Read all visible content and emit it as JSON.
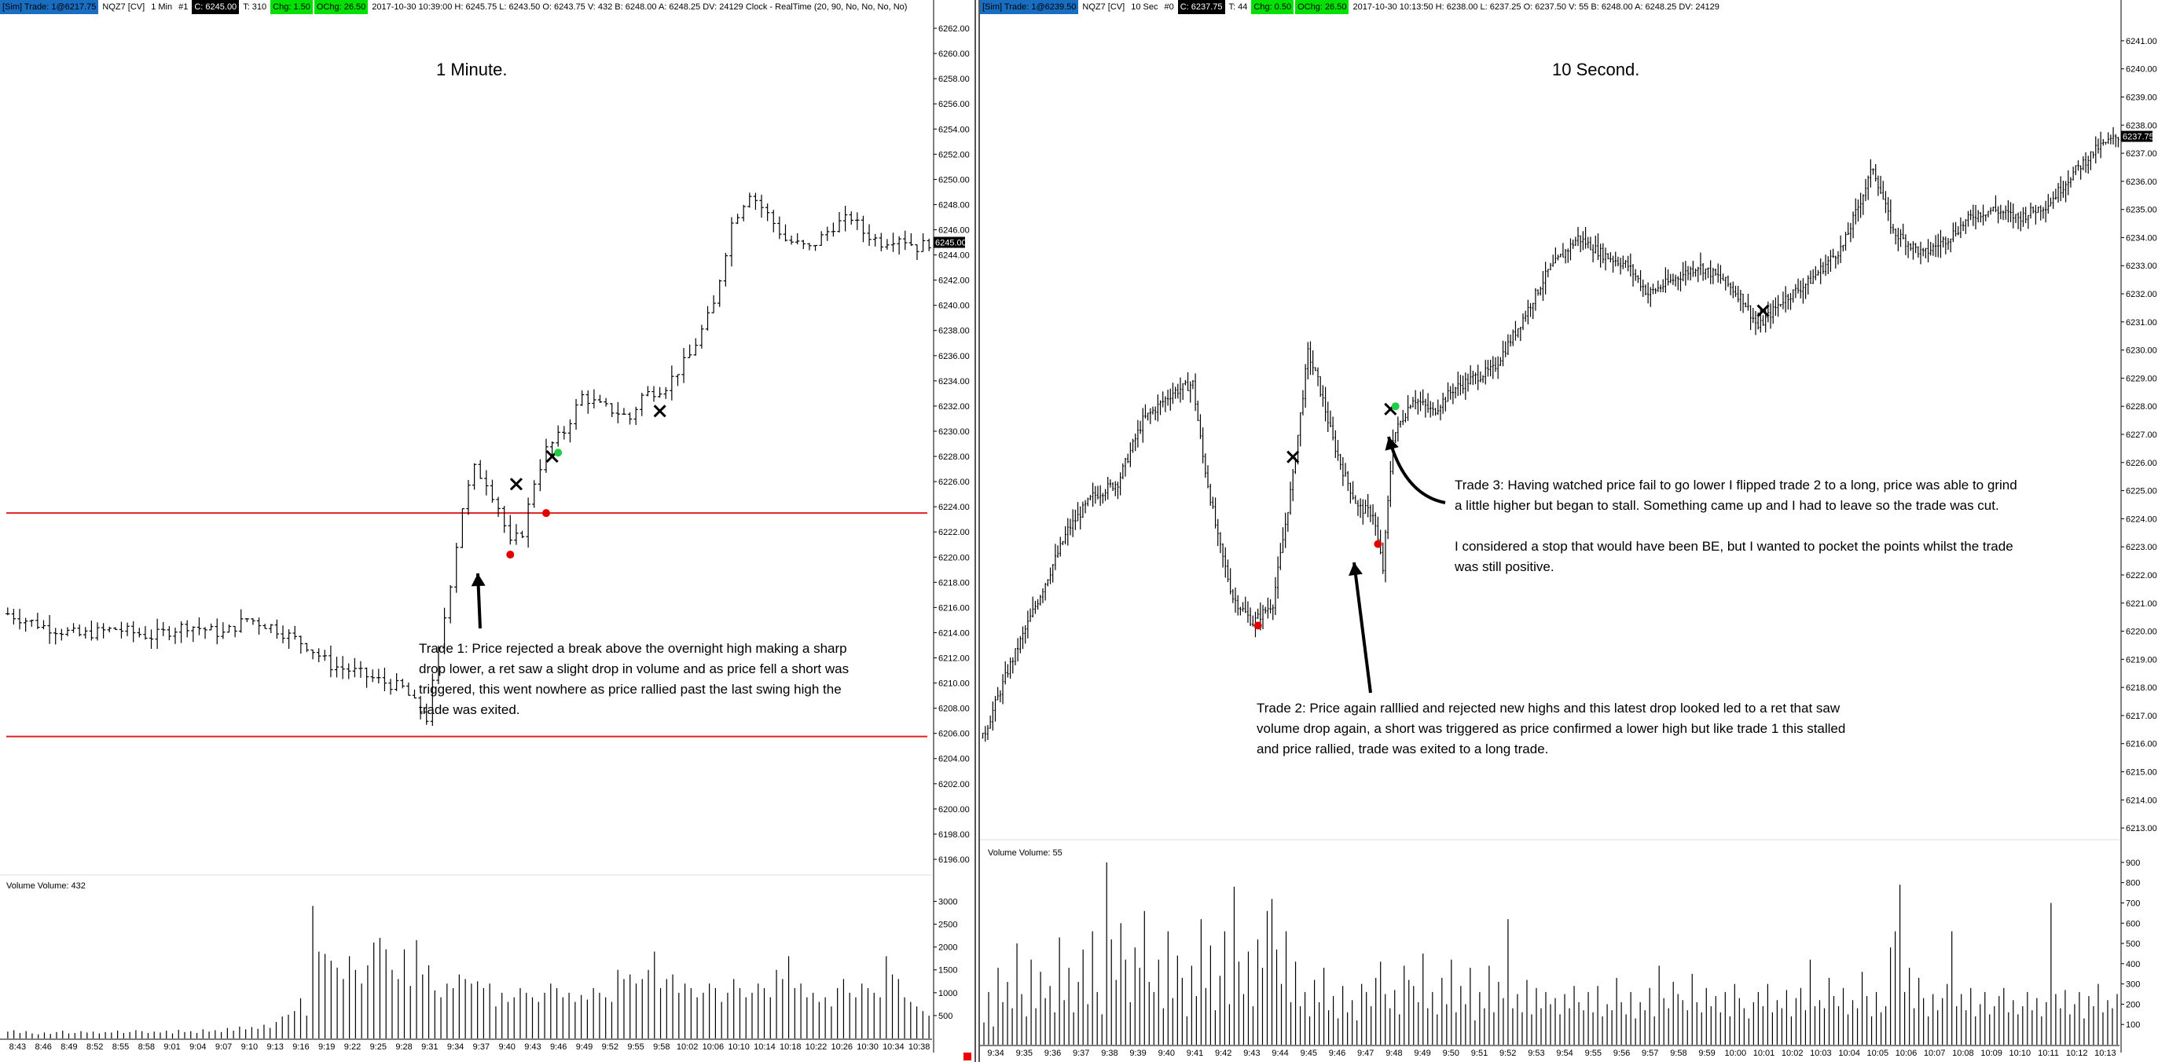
{
  "left": {
    "header": {
      "badge1": "[Sim] Trade: 1@6217.75",
      "instrument": "NQZ7 [CV]",
      "period": "1 Min",
      "num": "#1",
      "close_badge": "C: 6245.00",
      "trades": "T: 310",
      "chg_badge": "Chg: 1.50",
      "ochg_badge": "OChg: 26.50",
      "rest": "2017-10-30 10:39:00  H: 6245.75  L: 6243.50  O: 6243.75  V: 432  B: 6248.00  A: 6248.25  DV: 24129  Clock - RealTime   (20, 90, No, No, No, No)"
    },
    "title": "1 Minute.",
    "note": "Trade 1:  Price rejected a break above the overnight high making a sharp\ndrop lower, a ret saw a slight drop in volume and as price fell a short was\ntriggered, this went nowhere as price rallied past the last swing high the\ntrade was exited.",
    "volume_label": "Volume  Volume: 432",
    "last_price_tag": "6245.00",
    "price_ticks": [
      "6262.00",
      "6260.00",
      "6258.00",
      "6256.00",
      "6254.00",
      "6252.00",
      "6250.00",
      "6248.00",
      "6246.00",
      "6244.00",
      "6242.00",
      "6240.00",
      "6238.00",
      "6236.00",
      "6234.00",
      "6232.00",
      "6230.00",
      "6228.00",
      "6226.00",
      "6224.00",
      "6222.00",
      "6220.00",
      "6218.00",
      "6216.00",
      "6214.00",
      "6212.00",
      "6210.00",
      "6208.00",
      "6206.00",
      "6204.00",
      "6202.00",
      "6200.00",
      "6198.00",
      "6196.00"
    ],
    "volume_ticks": [
      "3000",
      "2500",
      "2000",
      "1500",
      "1000",
      "500"
    ],
    "time_ticks": [
      "8:43",
      "8:46",
      "8:49",
      "8:52",
      "8:55",
      "8:58",
      "9:01",
      "9:04",
      "9:07",
      "9:10",
      "9:13",
      "9:16",
      "9:19",
      "9:22",
      "9:25",
      "9:28",
      "9:31",
      "9:34",
      "9:37",
      "9:40",
      "9:43",
      "9:46",
      "9:49",
      "9:52",
      "9:55",
      "9:58",
      "10:02",
      "10:06",
      "10:10",
      "10:14",
      "10:18",
      "10:22",
      "10:26",
      "10:30",
      "10:34",
      "10:38"
    ]
  },
  "right": {
    "header": {
      "badge1": "[Sim] Trade: 1@6239.50",
      "instrument": "NQZ7 [CV]",
      "period": "10 Sec",
      "num": "#0",
      "close_badge": "C: 6237.75",
      "trades": "T: 44",
      "chg_badge": "Chg: 0.50",
      "ochg_badge": "OChg: 26.50",
      "rest": "2017-10-30 10:13:50  H: 6238.00  L: 6237.25  O: 6237.50  V: 55  B: 6248.00  A: 6248.25  DV: 24129"
    },
    "title": "10 Second.",
    "note2": "Trade 2:  Price again ralllied and rejected new highs and this latest drop looked led to a ret that saw\nvolume drop again, a short was triggered as price confirmed a lower high but like trade 1 this stalled\nand price rallied, trade was exited to a long trade.",
    "note3": "Trade 3:  Having watched price fail to go lower I flipped trade 2 to a long, price was able to grind\na little higher but began to stall.  Something came up and I had to leave so the trade was cut.\n\nI considered a stop that would have been BE, but I wanted to pocket the points whilst the trade\nwas still positive.",
    "volume_label": "Volume  Volume: 55",
    "last_price_tag": "6237.75",
    "price_ticks": [
      "6241.00",
      "6240.00",
      "6239.00",
      "6238.00",
      "6237.00",
      "6236.00",
      "6235.00",
      "6234.00",
      "6233.00",
      "6232.00",
      "6231.00",
      "6230.00",
      "6229.00",
      "6228.00",
      "6227.00",
      "6226.00",
      "6225.00",
      "6224.00",
      "6223.00",
      "6222.00",
      "6221.00",
      "6220.00",
      "6219.00",
      "6218.00",
      "6217.00",
      "6216.00",
      "6215.00",
      "6214.00",
      "6213.00"
    ],
    "volume_ticks": [
      "900",
      "800",
      "700",
      "600",
      "500",
      "400",
      "300",
      "200",
      "100"
    ],
    "time_ticks": [
      "9:34",
      "9:35",
      "9:36",
      "9:37",
      "9:38",
      "9:39",
      "9:40",
      "9:41",
      "9:42",
      "9:43",
      "9:44",
      "9:45",
      "9:46",
      "9:47",
      "9:48",
      "9:49",
      "9:50",
      "9:51",
      "9:52",
      "9:53",
      "9:54",
      "9:55",
      "9:56",
      "9:57",
      "9:58",
      "9:59",
      "10:00",
      "10:01",
      "10:02",
      "10:03",
      "10:04",
      "10:05",
      "10:06",
      "10:07",
      "10:08",
      "10:09",
      "10:10",
      "10:11",
      "10:12",
      "10:13"
    ]
  },
  "colors": {
    "bar": "#000000",
    "hline": "#e02020",
    "entry_dot": "#e00000",
    "exit_dot": "#22cc44",
    "x_mark": "#000000",
    "badge_blue": "#1a6ec2",
    "badge_green": "#00e000"
  },
  "chart_data": [
    {
      "type": "ohlc",
      "panel": "left",
      "interval": "1 Min",
      "ylim": [
        6195,
        6263
      ],
      "volume_ylim": [
        0,
        3300
      ],
      "horizontal_lines": [
        6223.5,
        6205.75
      ],
      "price_path": [
        [
          0,
          6215.5
        ],
        [
          6,
          6214.5
        ],
        [
          12,
          6213.8
        ],
        [
          18,
          6214.3
        ],
        [
          24,
          6213.7
        ],
        [
          30,
          6214.6
        ],
        [
          36,
          6213.9
        ],
        [
          40,
          6215.1
        ],
        [
          44,
          6214.5
        ],
        [
          50,
          6213
        ],
        [
          54,
          6211.4
        ],
        [
          58,
          6210.9
        ],
        [
          62,
          6210.2
        ],
        [
          66,
          6209.6
        ],
        [
          68,
          6208.4
        ],
        [
          70,
          6207.2
        ],
        [
          72,
          6212.5
        ],
        [
          74,
          6218
        ],
        [
          76,
          6224
        ],
        [
          78,
          6227
        ],
        [
          80,
          6226
        ],
        [
          82,
          6224
        ],
        [
          84,
          6221
        ],
        [
          86,
          6222
        ],
        [
          88,
          6226
        ],
        [
          90,
          6228.5
        ],
        [
          93,
          6230
        ],
        [
          96,
          6232.8
        ],
        [
          99,
          6232
        ],
        [
          102,
          6231.5
        ],
        [
          104,
          6231
        ],
        [
          106,
          6232.8
        ],
        [
          110,
          6233.6
        ],
        [
          114,
          6236
        ],
        [
          118,
          6240
        ],
        [
          121,
          6246.5
        ],
        [
          124,
          6249
        ],
        [
          127,
          6247.2
        ],
        [
          130,
          6245.2
        ],
        [
          134,
          6244.5
        ],
        [
          138,
          6246.3
        ],
        [
          141,
          6247
        ],
        [
          143,
          6245.8
        ],
        [
          146,
          6245
        ],
        [
          149,
          6245.5
        ],
        [
          152,
          6244.6
        ],
        [
          154,
          6245
        ]
      ],
      "volume_series": [
        150,
        180,
        120,
        160,
        110,
        90,
        130,
        100,
        140,
        170,
        110,
        120,
        160,
        130,
        150,
        110,
        140,
        130,
        170,
        120,
        140,
        180,
        160,
        120,
        150,
        130,
        170,
        110,
        190,
        140,
        160,
        120,
        200,
        150,
        180,
        140,
        230,
        170,
        260,
        200,
        250,
        210,
        300,
        230,
        360,
        480,
        520,
        600,
        880,
        500,
        2900,
        1900,
        1850,
        1700,
        1550,
        1300,
        1800,
        1500,
        1200,
        1600,
        2100,
        2200,
        1950,
        1500,
        1300,
        1950,
        1150,
        2150,
        1400,
        1600,
        1050,
        900,
        1200,
        1100,
        1400,
        1300,
        1200,
        1250,
        1100,
        1200,
        700,
        1000,
        800,
        900,
        1100,
        1000,
        900,
        800,
        1000,
        1200,
        1100,
        900,
        1000,
        800,
        950,
        850,
        1100,
        1000,
        900,
        800,
        1500,
        1300,
        1400,
        1200,
        1300,
        1500,
        1900,
        1100,
        1300,
        1400,
        1000,
        1200,
        1100,
        900,
        1000,
        1200,
        1100,
        800,
        1000,
        1300,
        1100,
        900,
        1000,
        1200,
        1100,
        900,
        1500,
        1300,
        1800,
        1100,
        1200,
        900,
        1000,
        800,
        900,
        700,
        1100,
        1300,
        1000,
        900,
        1200,
        1100,
        1000,
        900,
        1800,
        1400,
        1300,
        900,
        800,
        700,
        600,
        500
      ],
      "markers": [
        {
          "kind": "entry",
          "x": 84,
          "y": 6220.2
        },
        {
          "kind": "entry",
          "x": 90,
          "y": 6223.5
        },
        {
          "kind": "x",
          "x": 85,
          "y": 6225.8
        },
        {
          "kind": "x",
          "x": 91,
          "y": 6228
        },
        {
          "kind": "exit",
          "x": 92,
          "y": 6228.3
        },
        {
          "kind": "x",
          "x": 109,
          "y": 6231.6
        }
      ]
    },
    {
      "type": "ohlc",
      "panel": "right",
      "interval": "10 Sec",
      "ylim": [
        6212.5,
        6241.5
      ],
      "volume_ylim": [
        0,
        950
      ],
      "price_path": [
        [
          0,
          6216.2
        ],
        [
          10,
          6218.6
        ],
        [
          22,
          6221.1
        ],
        [
          34,
          6223.6
        ],
        [
          44,
          6224.8
        ],
        [
          54,
          6225.3
        ],
        [
          64,
          6227.5
        ],
        [
          76,
          6228.5
        ],
        [
          84,
          6228.8
        ],
        [
          88,
          6226.2
        ],
        [
          94,
          6223.3
        ],
        [
          100,
          6221.2
        ],
        [
          108,
          6220.3
        ],
        [
          116,
          6221
        ],
        [
          124,
          6225.5
        ],
        [
          130,
          6229.9
        ],
        [
          134,
          6228.9
        ],
        [
          140,
          6226.8
        ],
        [
          144,
          6225.7
        ],
        [
          150,
          6224.4
        ],
        [
          156,
          6224.2
        ],
        [
          160,
          6222.2
        ],
        [
          164,
          6226.9
        ],
        [
          172,
          6228.3
        ],
        [
          180,
          6227.8
        ],
        [
          188,
          6228.6
        ],
        [
          196,
          6229
        ],
        [
          204,
          6229.3
        ],
        [
          214,
          6230.8
        ],
        [
          226,
          6232.8
        ],
        [
          238,
          6234
        ],
        [
          248,
          6233.4
        ],
        [
          258,
          6233
        ],
        [
          266,
          6232
        ],
        [
          276,
          6232.5
        ],
        [
          286,
          6233
        ],
        [
          296,
          6232.5
        ],
        [
          304,
          6231.8
        ],
        [
          310,
          6230.8
        ],
        [
          320,
          6231.8
        ],
        [
          330,
          6232.4
        ],
        [
          344,
          6233.7
        ],
        [
          356,
          6236.5
        ],
        [
          364,
          6234.2
        ],
        [
          376,
          6233.4
        ],
        [
          386,
          6234
        ],
        [
          396,
          6234.8
        ],
        [
          404,
          6235
        ],
        [
          414,
          6234.7
        ],
        [
          426,
          6235.2
        ],
        [
          436,
          6236.3
        ],
        [
          446,
          6237.2
        ],
        [
          454,
          6237.6
        ]
      ],
      "volume_series": [
        110,
        260,
        90,
        380,
        210,
        310,
        180,
        500,
        250,
        140,
        420,
        180,
        360,
        230,
        290,
        160,
        530,
        220,
        380,
        160,
        310,
        470,
        200,
        560,
        260,
        150,
        900,
        520,
        320,
        600,
        420,
        210,
        480,
        380,
        660,
        310,
        260,
        420,
        180,
        560,
        230,
        440,
        330,
        140,
        390,
        240,
        620,
        280,
        490,
        170,
        340,
        560,
        200,
        780,
        410,
        250,
        460,
        190,
        520,
        380,
        660,
        720,
        470,
        300,
        560,
        210,
        410,
        190,
        260,
        140,
        320,
        210,
        380,
        170,
        240,
        130,
        290,
        160,
        220,
        120,
        300,
        260,
        190,
        330,
        410,
        250,
        180,
        270,
        150,
        390,
        320,
        290,
        210,
        450,
        180,
        260,
        150,
        330,
        200,
        420,
        160,
        290,
        200,
        380,
        120,
        260,
        180,
        390,
        160,
        310,
        230,
        620,
        180,
        250,
        160,
        320,
        150,
        280,
        180,
        260,
        200,
        230,
        150,
        250,
        180,
        290,
        210,
        170,
        260,
        160,
        290,
        140,
        200,
        170,
        330,
        210,
        150,
        260,
        130,
        210,
        170,
        280,
        140,
        390,
        230,
        180,
        310,
        250,
        220,
        170,
        350,
        210,
        160,
        280,
        190,
        240,
        160,
        260,
        140,
        300,
        230,
        180,
        130,
        210,
        260,
        190,
        300,
        160,
        220,
        180,
        270,
        140,
        230,
        280,
        170,
        420,
        190,
        220,
        180,
        330,
        240,
        190,
        280,
        150,
        220,
        180,
        360,
        240,
        140,
        260,
        160,
        190,
        480,
        560,
        790,
        260,
        380,
        180,
        330,
        230,
        140,
        250,
        170,
        230,
        300,
        560,
        190,
        250,
        170,
        280,
        140,
        200,
        260,
        150,
        190,
        240,
        280,
        160,
        220,
        150,
        190,
        260,
        170,
        230,
        140,
        210,
        700,
        250,
        180,
        270,
        150,
        200,
        260,
        130,
        240,
        190,
        300,
        160,
        220,
        180,
        250
      ],
      "markers": [
        {
          "kind": "entry",
          "x": 110,
          "y": 6220.2
        },
        {
          "kind": "x",
          "x": 124,
          "y": 6226.2
        },
        {
          "kind": "entry",
          "x": 158,
          "y": 6223.1
        },
        {
          "kind": "x",
          "x": 163,
          "y": 6227.9
        },
        {
          "kind": "exit",
          "x": 165,
          "y": 6228
        },
        {
          "kind": "x",
          "x": 312,
          "y": 6231.4
        }
      ]
    }
  ]
}
